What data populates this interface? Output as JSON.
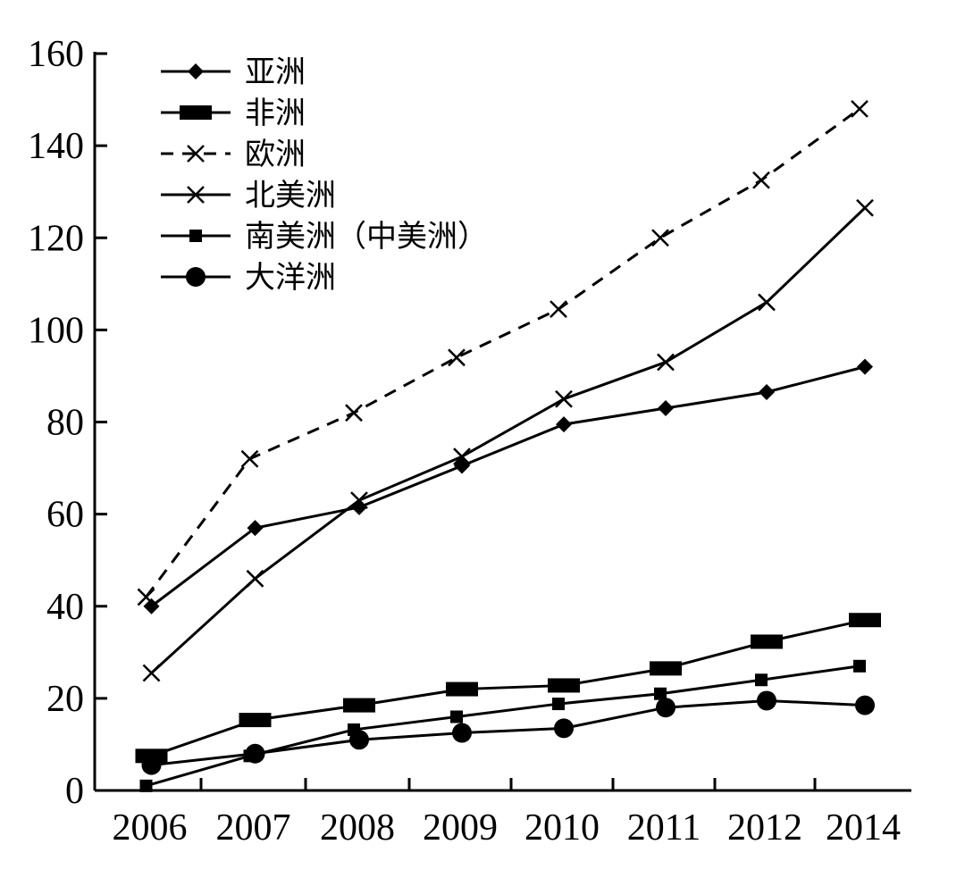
{
  "chart_data": {
    "type": "line",
    "categories": [
      "2006",
      "2007",
      "2008",
      "2009",
      "2010",
      "2011",
      "2012",
      "2014"
    ],
    "ylim": [
      0,
      160
    ],
    "yticks": [
      0,
      20,
      40,
      60,
      80,
      100,
      120,
      140,
      160
    ],
    "grid": false,
    "legend_position": "top-left",
    "series": [
      {
        "name": "亚洲",
        "marker": "diamond",
        "line": "solid",
        "color": "#000000",
        "values": [
          40,
          57,
          61.5,
          70.5,
          79.5,
          83,
          86.5,
          92
        ]
      },
      {
        "name": "非洲",
        "marker": "rect",
        "line": "solid",
        "color": "#000000",
        "values": [
          7.5,
          15.3,
          18.5,
          22,
          22.8,
          26.5,
          32.3,
          37
        ]
      },
      {
        "name": "欧洲",
        "marker": "x",
        "line": "dashed",
        "color": "#000000",
        "values": [
          42,
          72,
          82,
          94,
          104.5,
          120,
          132.5,
          148
        ]
      },
      {
        "name": "北美洲",
        "marker": "x",
        "line": "solid",
        "color": "#000000",
        "values": [
          25.5,
          46,
          63,
          72.5,
          85,
          93,
          106,
          126.5
        ]
      },
      {
        "name": "南美洲（中美洲）",
        "marker": "square",
        "line": "solid",
        "color": "#000000",
        "values": [
          1,
          7.5,
          13.2,
          16,
          18.8,
          21,
          24,
          27
        ]
      },
      {
        "name": "大洋洲",
        "marker": "circle",
        "line": "solid",
        "color": "#000000",
        "values": [
          5.5,
          8,
          11,
          12.5,
          13.5,
          18,
          19.5,
          18.5
        ]
      }
    ]
  }
}
